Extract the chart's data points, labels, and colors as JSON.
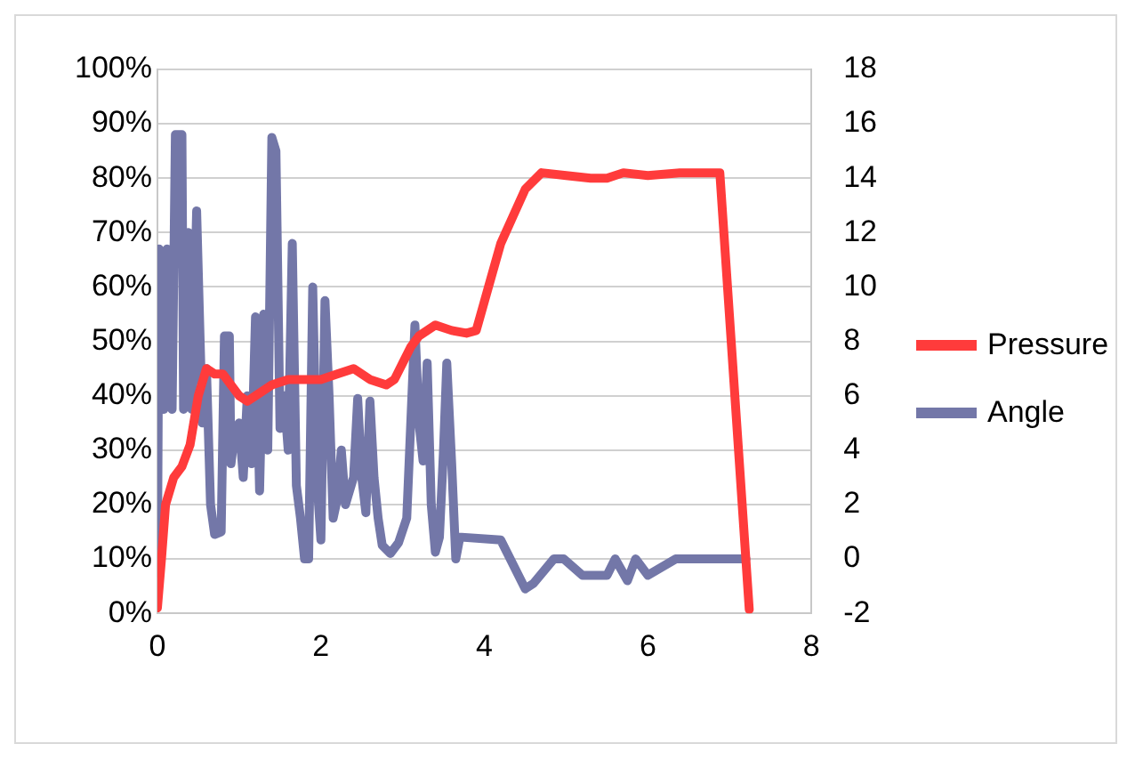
{
  "chart_data": {
    "type": "line",
    "legend": "right",
    "grid": "y",
    "marker": "none",
    "line_style": "solid",
    "xlim": [
      0,
      8
    ],
    "xticks": [
      0,
      2,
      4,
      6,
      8
    ],
    "ylim": [
      0,
      100
    ],
    "yticks": [
      {
        "value": 0,
        "label": "0%"
      },
      {
        "value": 10,
        "label": "10%"
      },
      {
        "value": 20,
        "label": "20%"
      },
      {
        "value": 30,
        "label": "30%"
      },
      {
        "value": 40,
        "label": "40%"
      },
      {
        "value": 50,
        "label": "50%"
      },
      {
        "value": 60,
        "label": "60%"
      },
      {
        "value": 70,
        "label": "70%"
      },
      {
        "value": 80,
        "label": "80%"
      },
      {
        "value": 90,
        "label": "90%"
      },
      {
        "value": 100,
        "label": "100%"
      }
    ],
    "y2lim": [
      -2,
      18
    ],
    "y2ticks": [
      -2,
      0,
      2,
      4,
      6,
      8,
      10,
      12,
      14,
      16,
      18
    ],
    "series": [
      {
        "name": "Pressure",
        "color": "#ff3b3b",
        "x": [
          0,
          0.05,
          0.1,
          0.2,
          0.3,
          0.4,
          0.5,
          0.6,
          0.7,
          0.8,
          0.9,
          1.0,
          1.1,
          1.2,
          1.4,
          1.6,
          1.8,
          2.0,
          2.2,
          2.4,
          2.6,
          2.8,
          2.9,
          3.0,
          3.1,
          3.2,
          3.4,
          3.6,
          3.78,
          3.9,
          4.05,
          4.2,
          4.35,
          4.5,
          4.7,
          5.0,
          5.3,
          5.5,
          5.7,
          6.0,
          6.4,
          6.88,
          7.24
        ],
        "values": [
          1,
          10,
          20,
          25,
          27,
          31,
          40,
          45,
          44,
          44,
          42,
          40,
          39,
          40,
          42,
          43,
          43,
          43,
          44,
          45,
          43,
          42,
          43,
          46,
          49,
          51,
          53,
          52,
          51.5,
          52,
          60,
          68,
          73,
          78,
          81,
          80.5,
          80,
          80,
          81,
          80.5,
          81,
          81,
          0.7
        ]
      },
      {
        "name": "Angle",
        "color": "#7377a8",
        "axis": "y2",
        "x": [
          0,
          0.02,
          0.08,
          0.12,
          0.18,
          0.22,
          0.3,
          0.32,
          0.38,
          0.42,
          0.48,
          0.55,
          0.6,
          0.65,
          0.7,
          0.78,
          0.82,
          0.88,
          0.9,
          0.95,
          1.0,
          1.05,
          1.1,
          1.15,
          1.2,
          1.25,
          1.3,
          1.35,
          1.4,
          1.45,
          1.5,
          1.55,
          1.6,
          1.65,
          1.7,
          1.75,
          1.8,
          1.85,
          1.9,
          1.95,
          2.0,
          2.05,
          2.1,
          2.15,
          2.2,
          2.25,
          2.3,
          2.4,
          2.45,
          2.5,
          2.55,
          2.6,
          2.65,
          2.7,
          2.75,
          2.85,
          2.95,
          3.05,
          3.15,
          3.2,
          3.25,
          3.3,
          3.35,
          3.4,
          3.45,
          3.5,
          3.54,
          3.6,
          3.65,
          3.7,
          3.72,
          4.2,
          4.5,
          4.6,
          4.85,
          4.97,
          5.2,
          5.5,
          5.6,
          5.75,
          5.85,
          6.0,
          6.34,
          7.2
        ],
        "values": [
          -0.5,
          11.4,
          5.5,
          11.4,
          5.5,
          15.6,
          15.6,
          5.5,
          12,
          5.5,
          12.8,
          5,
          7,
          2,
          0.9,
          1,
          8.2,
          8.2,
          3.5,
          4.7,
          5,
          3,
          6,
          3.5,
          8.9,
          2.5,
          9,
          4,
          15.5,
          15,
          4.8,
          6,
          4,
          11.6,
          2.7,
          1.5,
          0,
          0,
          10,
          3,
          0.7,
          9.5,
          6,
          1.5,
          2.2,
          4,
          2,
          3,
          5.9,
          3,
          1.7,
          5.8,
          3,
          1.5,
          0.5,
          0.2,
          0.6,
          1.5,
          8.6,
          5,
          3.6,
          7.2,
          2,
          0.25,
          0.8,
          4,
          7.2,
          3.5,
          0,
          0.8,
          0.8,
          0.7,
          -1.1,
          -0.9,
          0,
          0,
          -0.6,
          -0.6,
          0,
          -0.8,
          0,
          -0.6,
          0,
          0
        ]
      }
    ]
  }
}
